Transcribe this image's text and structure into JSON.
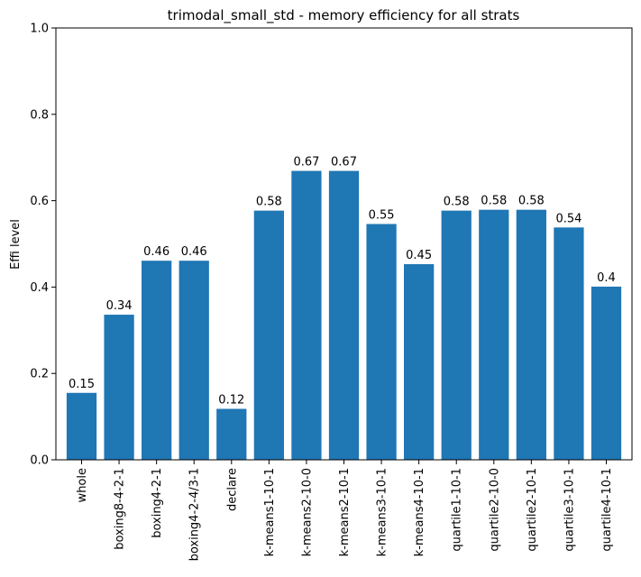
{
  "chart_data": {
    "type": "bar",
    "title": "trimodal_small_std - memory efficiency for all strats",
    "xlabel": "",
    "ylabel": "Effi level",
    "ylim": [
      0,
      1
    ],
    "yticks": [
      "0.0",
      "0.2",
      "0.4",
      "0.6",
      "0.8",
      "1.0"
    ],
    "categories": [
      "whole",
      "boxing8-4-2-1",
      "boxing4-2-1",
      "boxing4-2-4/3-1",
      "declare",
      "k-means1-10-1",
      "k-means2-10-0",
      "k-means2-10-1",
      "k-means3-10-1",
      "k-means4-10-1",
      "quartile1-10-1",
      "quartile2-10-0",
      "quartile2-10-1",
      "quartile3-10-1",
      "quartile4-10-1"
    ],
    "values": [
      0.155,
      0.336,
      0.461,
      0.461,
      0.118,
      0.577,
      0.669,
      0.669,
      0.546,
      0.453,
      0.577,
      0.579,
      0.579,
      0.538,
      0.401
    ],
    "value_labels": [
      "0.15",
      "0.34",
      "0.46",
      "0.46",
      "0.12",
      "0.58",
      "0.67",
      "0.67",
      "0.55",
      "0.45",
      "0.58",
      "0.58",
      "0.58",
      "0.54",
      "0.4"
    ],
    "bar_color": "#1f77b4",
    "grid": false,
    "legend": false
  }
}
